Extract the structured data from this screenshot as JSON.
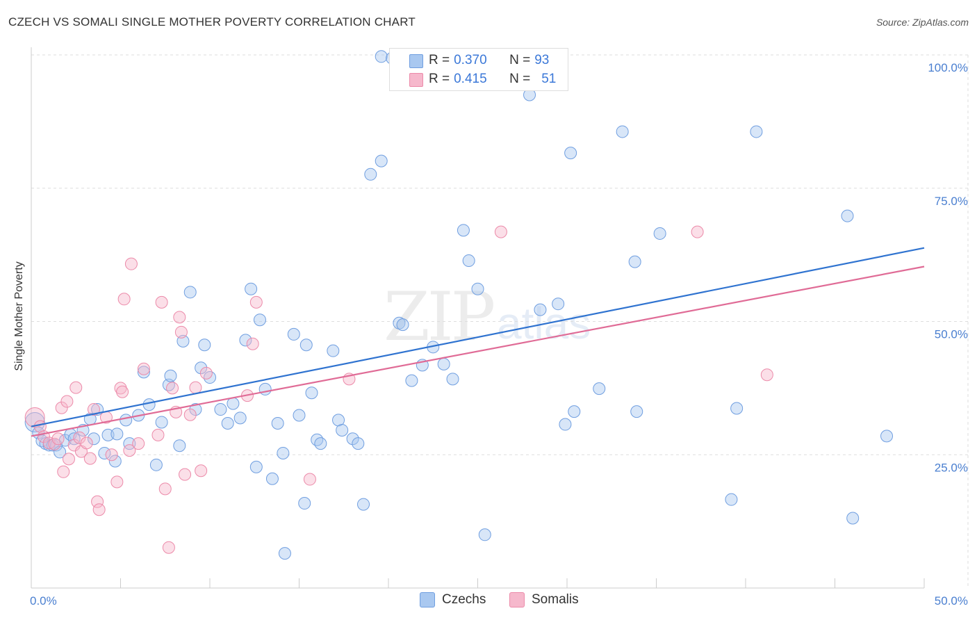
{
  "title": "CZECH VS SOMALI SINGLE MOTHER POVERTY CORRELATION CHART",
  "source": "Source: ZipAtlas.com",
  "watermark": {
    "zip": "ZIP",
    "atlas": "atlas"
  },
  "legend": {
    "rows": [
      {
        "r_label": "R =",
        "r_value": "0.370",
        "n_label": "N =",
        "n_value": "93",
        "color": "#a9c8f0"
      },
      {
        "r_label": "R =",
        "r_value": "0.415",
        "n_label": "N =",
        "n_value": "51",
        "color": "#f6b8cc"
      }
    ]
  },
  "bottom_legend": {
    "czechs": "Czechs",
    "somalis": "Somalis"
  },
  "colors": {
    "czech_fill": "#a9c8f0",
    "czech_stroke": "#6f9ee0",
    "czech_line": "#2f73d0",
    "somali_fill": "#f6b8cc",
    "somali_stroke": "#ec8aa9",
    "somali_line": "#e06b96",
    "tick": "#4a7fd0",
    "grid": "#dddddd"
  },
  "chart_data": {
    "type": "scatter",
    "title": "CZECH VS SOMALI SINGLE MOTHER POVERTY CORRELATION CHART",
    "xlabel": "",
    "ylabel": "Single Mother Poverty",
    "xlim": [
      0,
      50
    ],
    "ylim": [
      0,
      105
    ],
    "x_tick_labels": [
      "0.0%",
      "50.0%"
    ],
    "y_ticks": [
      25,
      50,
      75,
      100
    ],
    "y_tick_labels": [
      "25.0%",
      "50.0%",
      "75.0%",
      "100.0%"
    ],
    "grid": true,
    "series": [
      {
        "name": "Czechs",
        "r": 0.37,
        "n": 93,
        "trend": {
          "x": [
            0,
            50
          ],
          "y": [
            30.3,
            63.8
          ]
        },
        "points": [
          [
            0.2,
            31.1
          ],
          [
            0.4,
            29.1
          ],
          [
            0.6,
            27.6
          ],
          [
            0.8,
            27.1
          ],
          [
            1.0,
            26.8
          ],
          [
            1.2,
            26.8
          ],
          [
            1.4,
            26.8
          ],
          [
            1.6,
            25.5
          ],
          [
            1.9,
            27.7
          ],
          [
            2.2,
            28.8
          ],
          [
            2.4,
            28.0
          ],
          [
            2.9,
            29.6
          ],
          [
            3.3,
            31.7
          ],
          [
            3.5,
            28.0
          ],
          [
            3.7,
            33.5
          ],
          [
            4.1,
            25.3
          ],
          [
            4.3,
            28.7
          ],
          [
            4.7,
            23.8
          ],
          [
            4.8,
            28.9
          ],
          [
            5.3,
            31.5
          ],
          [
            5.5,
            27.1
          ],
          [
            6.0,
            32.4
          ],
          [
            6.3,
            40.5
          ],
          [
            6.6,
            34.4
          ],
          [
            7.0,
            23.1
          ],
          [
            7.3,
            31.1
          ],
          [
            7.7,
            38.1
          ],
          [
            7.8,
            39.8
          ],
          [
            8.3,
            26.7
          ],
          [
            8.5,
            46.3
          ],
          [
            8.9,
            55.5
          ],
          [
            9.2,
            33.5
          ],
          [
            9.5,
            41.3
          ],
          [
            9.7,
            45.6
          ],
          [
            10.0,
            39.5
          ],
          [
            10.6,
            33.5
          ],
          [
            11.0,
            30.9
          ],
          [
            11.3,
            34.6
          ],
          [
            11.7,
            31.9
          ],
          [
            12.0,
            46.5
          ],
          [
            12.3,
            56.1
          ],
          [
            12.6,
            22.7
          ],
          [
            12.8,
            50.3
          ],
          [
            13.1,
            37.3
          ],
          [
            13.5,
            20.5
          ],
          [
            13.8,
            30.9
          ],
          [
            14.1,
            25.3
          ],
          [
            14.2,
            6.5
          ],
          [
            14.7,
            47.6
          ],
          [
            15.0,
            32.4
          ],
          [
            15.3,
            15.9
          ],
          [
            15.4,
            45.6
          ],
          [
            15.7,
            36.6
          ],
          [
            16.0,
            27.8
          ],
          [
            16.2,
            27.1
          ],
          [
            16.9,
            44.5
          ],
          [
            17.2,
            31.5
          ],
          [
            17.4,
            29.6
          ],
          [
            18.0,
            28.0
          ],
          [
            18.3,
            27.1
          ],
          [
            18.6,
            15.7
          ],
          [
            19.0,
            77.6
          ],
          [
            19.6,
            80.1
          ],
          [
            19.6,
            99.7
          ],
          [
            20.2,
            99.4
          ],
          [
            20.6,
            49.7
          ],
          [
            20.8,
            49.4
          ],
          [
            21.3,
            38.9
          ],
          [
            21.9,
            41.8
          ],
          [
            22.5,
            45.2
          ],
          [
            23.1,
            42.0
          ],
          [
            23.6,
            39.2
          ],
          [
            24.2,
            67.1
          ],
          [
            24.5,
            61.4
          ],
          [
            25.0,
            56.1
          ],
          [
            25.4,
            10.0
          ],
          [
            27.9,
            92.5
          ],
          [
            28.5,
            52.2
          ],
          [
            29.5,
            53.3
          ],
          [
            29.9,
            30.7
          ],
          [
            30.2,
            81.6
          ],
          [
            30.4,
            33.1
          ],
          [
            31.8,
            37.4
          ],
          [
            33.1,
            85.6
          ],
          [
            33.8,
            61.2
          ],
          [
            33.9,
            33.1
          ],
          [
            35.2,
            66.5
          ],
          [
            39.2,
            16.6
          ],
          [
            39.5,
            33.7
          ],
          [
            40.6,
            85.6
          ],
          [
            45.7,
            69.8
          ],
          [
            46.0,
            13.1
          ],
          [
            47.9,
            28.5
          ]
        ]
      },
      {
        "name": "Somalis",
        "r": 0.415,
        "n": 51,
        "trend": {
          "x": [
            0,
            50
          ],
          "y": [
            28.5,
            60.3
          ]
        },
        "points": [
          [
            0.2,
            32.0
          ],
          [
            0.5,
            30.3
          ],
          [
            0.7,
            28.4
          ],
          [
            1.0,
            27.2
          ],
          [
            1.3,
            27.0
          ],
          [
            1.5,
            28.0
          ],
          [
            1.7,
            33.8
          ],
          [
            1.8,
            21.8
          ],
          [
            2.0,
            35.0
          ],
          [
            2.1,
            24.2
          ],
          [
            2.4,
            26.8
          ],
          [
            2.5,
            37.6
          ],
          [
            2.7,
            28.2
          ],
          [
            2.8,
            25.6
          ],
          [
            3.1,
            27.2
          ],
          [
            3.3,
            24.3
          ],
          [
            3.5,
            33.5
          ],
          [
            3.7,
            16.2
          ],
          [
            3.8,
            14.7
          ],
          [
            4.2,
            32.0
          ],
          [
            4.5,
            25.0
          ],
          [
            4.8,
            19.9
          ],
          [
            5.0,
            37.5
          ],
          [
            5.1,
            36.8
          ],
          [
            5.2,
            54.2
          ],
          [
            5.5,
            25.8
          ],
          [
            5.6,
            60.8
          ],
          [
            6.0,
            27.1
          ],
          [
            6.3,
            41.1
          ],
          [
            7.1,
            28.7
          ],
          [
            7.3,
            53.6
          ],
          [
            7.5,
            18.6
          ],
          [
            7.7,
            7.6
          ],
          [
            7.9,
            37.5
          ],
          [
            8.1,
            33.0
          ],
          [
            8.3,
            50.8
          ],
          [
            8.4,
            48.0
          ],
          [
            8.6,
            21.3
          ],
          [
            8.9,
            32.5
          ],
          [
            9.2,
            37.6
          ],
          [
            9.5,
            22.0
          ],
          [
            9.8,
            40.3
          ],
          [
            12.1,
            36.1
          ],
          [
            12.4,
            45.8
          ],
          [
            12.6,
            53.6
          ],
          [
            15.6,
            20.4
          ],
          [
            17.8,
            39.2
          ],
          [
            22.3,
            99.3
          ],
          [
            26.3,
            66.8
          ],
          [
            37.3,
            66.8
          ],
          [
            41.2,
            40.0
          ]
        ]
      }
    ]
  }
}
